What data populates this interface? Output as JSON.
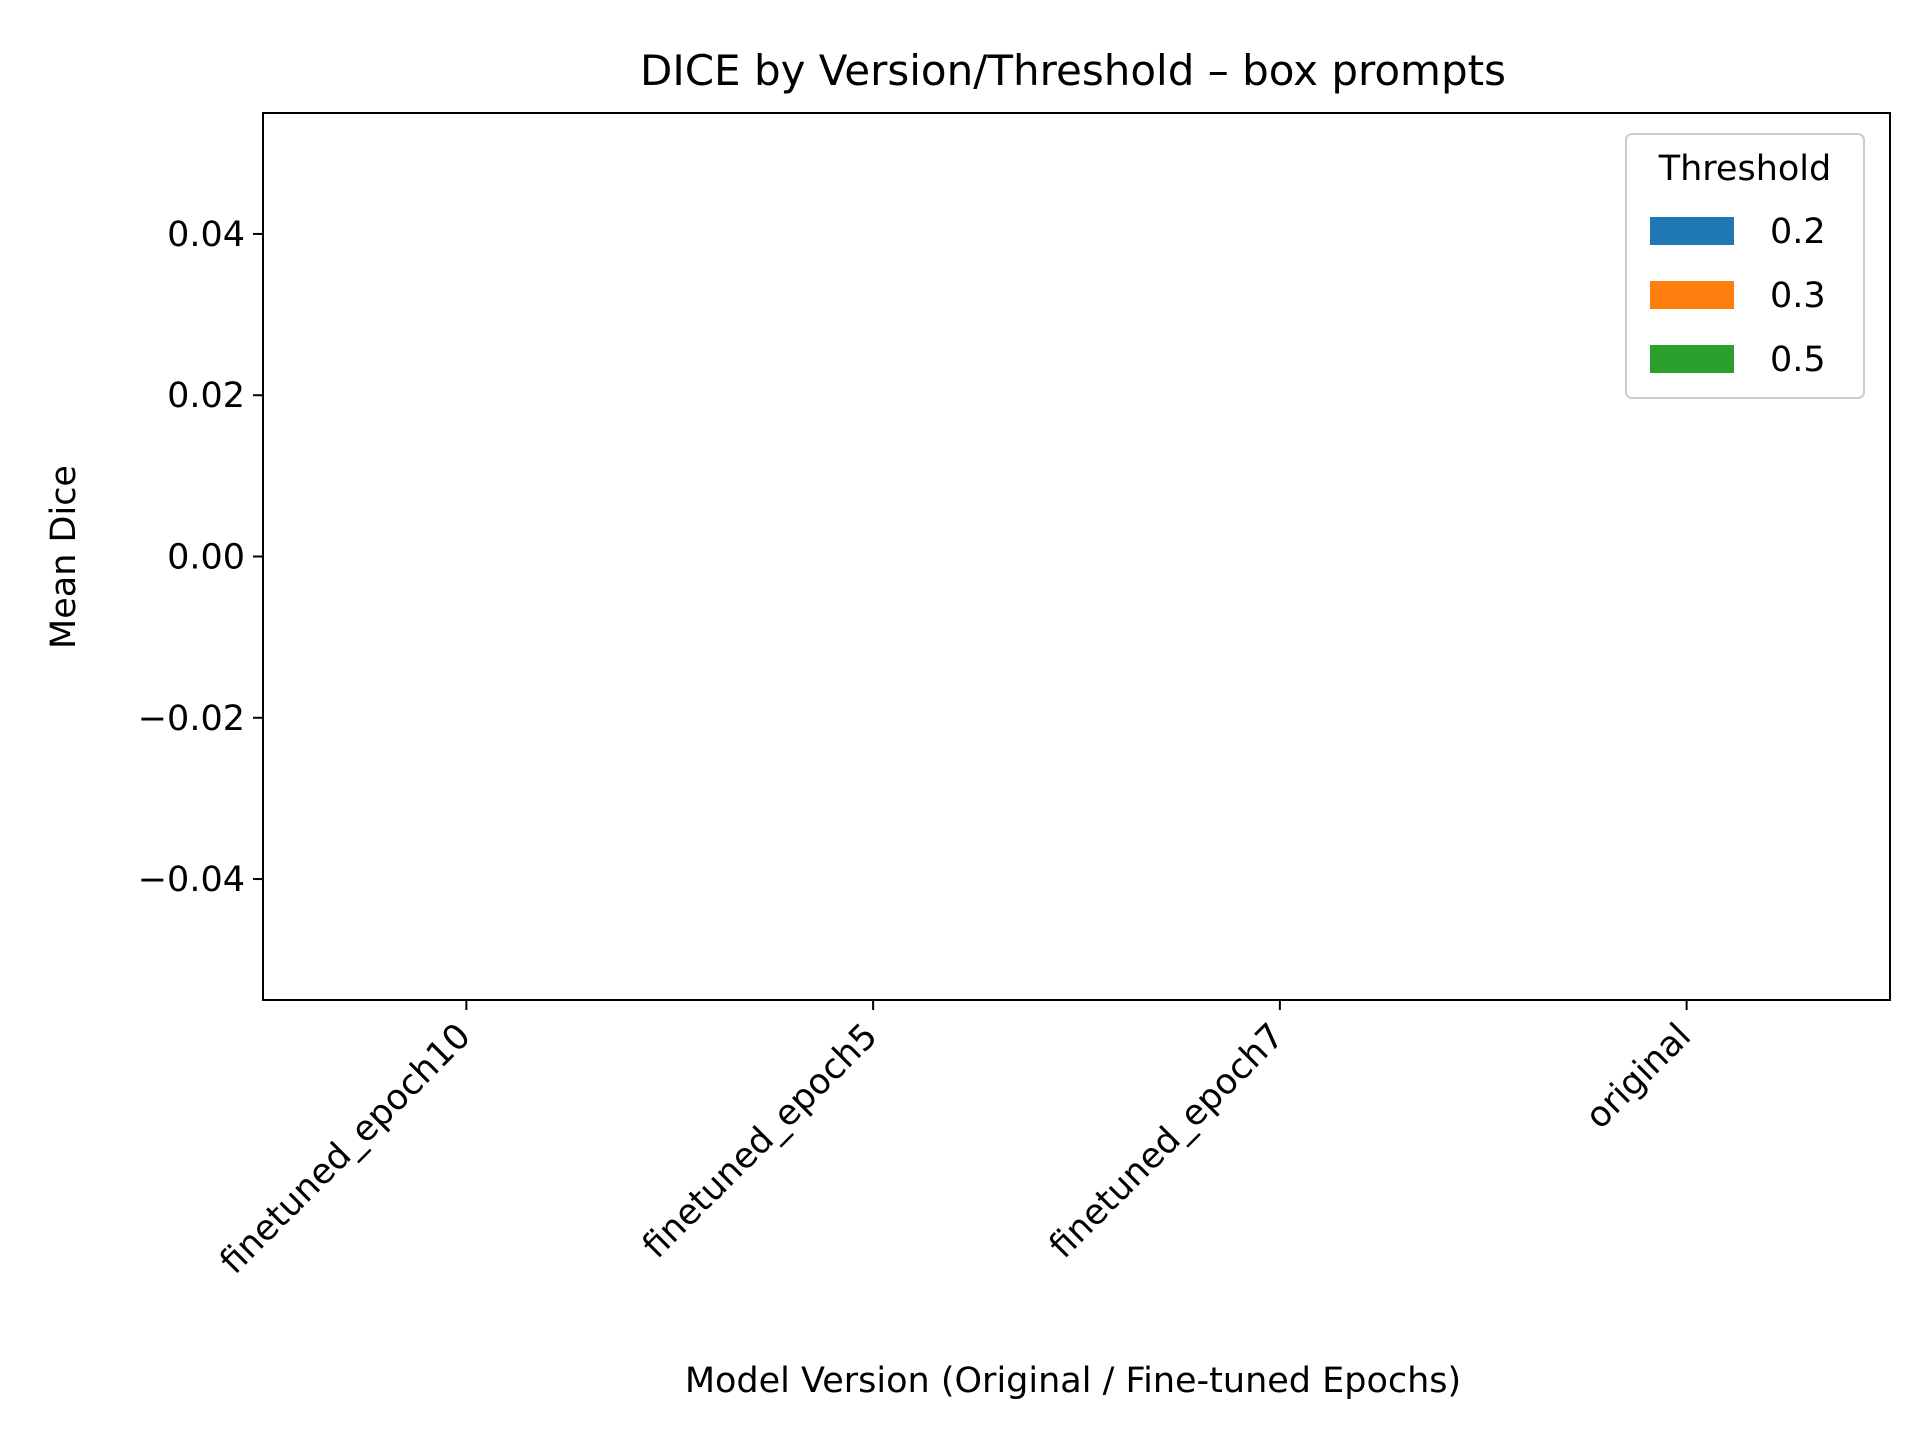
{
  "chart_data": {
    "type": "bar",
    "title": "DICE by Version/Threshold – box prompts",
    "xlabel": "Model Version (Original / Fine-tuned Epochs)",
    "ylabel": "Mean Dice",
    "categories": [
      "finetuned_epoch10",
      "finetuned_epoch5",
      "finetuned_epoch7",
      "original"
    ],
    "ylim": [
      -0.055,
      0.055
    ],
    "yticks": [
      0.04,
      0.02,
      0.0,
      -0.02,
      -0.04
    ],
    "ytick_labels": [
      "0.04",
      "0.02",
      "0.00",
      "−0.02",
      "−0.04"
    ],
    "grid": false,
    "legend": {
      "title": "Threshold",
      "placement": "top-right"
    },
    "series": [
      {
        "name": "0.2",
        "color": "#1f77b4",
        "values": [
          null,
          null,
          null,
          null
        ]
      },
      {
        "name": "0.3",
        "color": "#ff7f0e",
        "values": [
          null,
          null,
          null,
          null
        ]
      },
      {
        "name": "0.5",
        "color": "#2ca02c",
        "values": [
          null,
          null,
          null,
          null
        ]
      }
    ]
  }
}
